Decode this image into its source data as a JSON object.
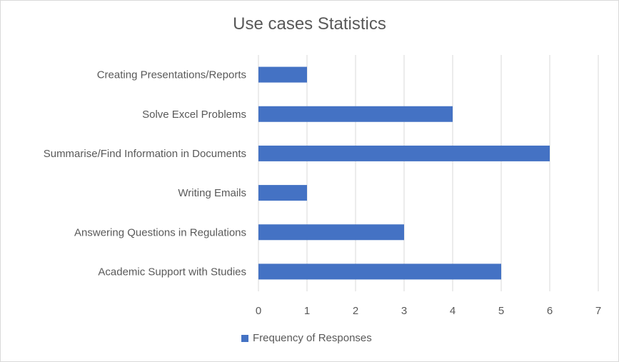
{
  "chart_data": {
    "type": "bar",
    "orientation": "horizontal",
    "title": "Use cases Statistics",
    "categories": [
      "Creating Presentations/Reports",
      "Solve Excel Problems",
      "Summarise/Find Information in Documents",
      "Writing Emails",
      "Answering Questions in Regulations",
      "Academic Support with Studies"
    ],
    "series": [
      {
        "name": "Frequency of Responses",
        "values": [
          1,
          4,
          6,
          1,
          3,
          5
        ],
        "color": "#4472c4"
      }
    ],
    "xlim": [
      0,
      7
    ],
    "xticks": [
      "0",
      "1",
      "2",
      "3",
      "4",
      "5",
      "6",
      "7"
    ],
    "grid": "vertical",
    "legend": "bottom"
  }
}
